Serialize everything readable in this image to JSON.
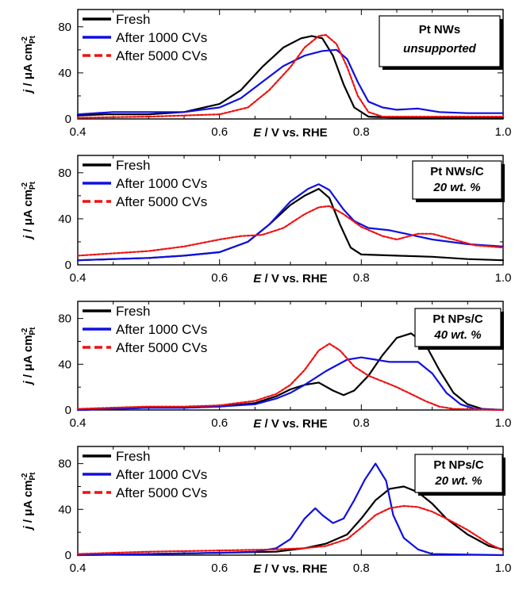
{
  "figure": {
    "ylabel_main": "j / μA cm",
    "ylabel_sup": "-2",
    "ylabel_sub": "Pt",
    "xlabel_main": "E",
    "xlabel_rest": " / V vs. RHE"
  },
  "colors": {
    "Fresh": "#000000",
    "After 1000 CVs": "#1010e0",
    "After 5000 CVs": "#ee1111"
  },
  "chart_data": [
    {
      "type": "line",
      "label_line1": "Pt NWs",
      "label_line2": "unsupported",
      "xlim": [
        0.4,
        1.0
      ],
      "ylim": [
        0,
        95
      ],
      "xticks": [
        "0.4",
        "0.6",
        "0.8",
        "1.0"
      ],
      "yticks": [
        "0",
        "40",
        "80"
      ],
      "series": [
        {
          "name": "Fresh",
          "style": "solid",
          "color": "#000000",
          "points": [
            [
              0.4,
              3
            ],
            [
              0.44,
              4
            ],
            [
              0.5,
              4
            ],
            [
              0.55,
              6
            ],
            [
              0.6,
              13
            ],
            [
              0.63,
              25
            ],
            [
              0.66,
              45
            ],
            [
              0.69,
              62
            ],
            [
              0.715,
              70
            ],
            [
              0.73,
              72
            ],
            [
              0.745,
              70
            ],
            [
              0.76,
              55
            ],
            [
              0.775,
              30
            ],
            [
              0.79,
              10
            ],
            [
              0.81,
              2
            ],
            [
              0.85,
              1
            ],
            [
              0.9,
              1
            ],
            [
              1.0,
              1
            ]
          ]
        },
        {
          "name": "After 1000 CVs",
          "style": "solid",
          "color": "#1010e0",
          "points": [
            [
              0.4,
              4
            ],
            [
              0.45,
              6
            ],
            [
              0.5,
              6
            ],
            [
              0.55,
              6
            ],
            [
              0.6,
              10
            ],
            [
              0.63,
              18
            ],
            [
              0.66,
              32
            ],
            [
              0.69,
              46
            ],
            [
              0.72,
              55
            ],
            [
              0.745,
              59
            ],
            [
              0.765,
              60
            ],
            [
              0.78,
              52
            ],
            [
              0.795,
              32
            ],
            [
              0.81,
              15
            ],
            [
              0.83,
              10
            ],
            [
              0.85,
              8
            ],
            [
              0.88,
              9
            ],
            [
              0.91,
              6
            ],
            [
              0.95,
              5
            ],
            [
              1.0,
              5
            ]
          ]
        },
        {
          "name": "After 5000 CVs",
          "style": "dashed",
          "color": "#ee1111",
          "points": [
            [
              0.4,
              1
            ],
            [
              0.5,
              2
            ],
            [
              0.6,
              4
            ],
            [
              0.64,
              10
            ],
            [
              0.67,
              25
            ],
            [
              0.7,
              45
            ],
            [
              0.72,
              62
            ],
            [
              0.74,
              72
            ],
            [
              0.75,
              73
            ],
            [
              0.765,
              65
            ],
            [
              0.78,
              45
            ],
            [
              0.795,
              20
            ],
            [
              0.81,
              6
            ],
            [
              0.83,
              2
            ],
            [
              0.9,
              2
            ],
            [
              1.0,
              2
            ]
          ]
        }
      ]
    },
    {
      "type": "line",
      "label_line1": "Pt NWs/C",
      "label_line2": "20 wt. %",
      "xlim": [
        0.4,
        1.0
      ],
      "ylim": [
        0,
        95
      ],
      "xticks": [
        "0.4",
        "0.6",
        "0.8",
        "1.0"
      ],
      "yticks": [
        "0",
        "40",
        "80"
      ],
      "series": [
        {
          "name": "Fresh",
          "style": "solid",
          "color": "#000000",
          "points": [
            [
              0.4,
              4
            ],
            [
              0.45,
              5
            ],
            [
              0.5,
              6
            ],
            [
              0.55,
              8
            ],
            [
              0.6,
              11
            ],
            [
              0.64,
              20
            ],
            [
              0.67,
              35
            ],
            [
              0.7,
              52
            ],
            [
              0.72,
              60
            ],
            [
              0.74,
              66
            ],
            [
              0.755,
              58
            ],
            [
              0.77,
              35
            ],
            [
              0.785,
              15
            ],
            [
              0.8,
              9
            ],
            [
              0.85,
              8
            ],
            [
              0.9,
              7
            ],
            [
              0.95,
              5
            ],
            [
              1.0,
              4
            ]
          ]
        },
        {
          "name": "After 1000 CVs",
          "style": "solid",
          "color": "#1010e0",
          "points": [
            [
              0.4,
              4
            ],
            [
              0.45,
              5
            ],
            [
              0.5,
              6
            ],
            [
              0.55,
              8
            ],
            [
              0.6,
              11
            ],
            [
              0.64,
              20
            ],
            [
              0.67,
              35
            ],
            [
              0.7,
              55
            ],
            [
              0.725,
              66
            ],
            [
              0.74,
              70
            ],
            [
              0.755,
              65
            ],
            [
              0.775,
              48
            ],
            [
              0.79,
              38
            ],
            [
              0.81,
              32
            ],
            [
              0.84,
              30
            ],
            [
              0.87,
              26
            ],
            [
              0.9,
              22
            ],
            [
              0.95,
              18
            ],
            [
              1.0,
              16
            ]
          ]
        },
        {
          "name": "After 5000 CVs",
          "style": "dashed",
          "color": "#ee1111",
          "points": [
            [
              0.4,
              8
            ],
            [
              0.45,
              10
            ],
            [
              0.5,
              12
            ],
            [
              0.55,
              16
            ],
            [
              0.6,
              22
            ],
            [
              0.63,
              25
            ],
            [
              0.66,
              26
            ],
            [
              0.69,
              32
            ],
            [
              0.72,
              44
            ],
            [
              0.74,
              50
            ],
            [
              0.755,
              51
            ],
            [
              0.775,
              44
            ],
            [
              0.8,
              33
            ],
            [
              0.83,
              25
            ],
            [
              0.85,
              22
            ],
            [
              0.88,
              27
            ],
            [
              0.9,
              27
            ],
            [
              0.93,
              22
            ],
            [
              0.96,
              17
            ],
            [
              1.0,
              15
            ]
          ]
        }
      ]
    },
    {
      "type": "line",
      "label_line1": "Pt NPs/C",
      "label_line2": "40 wt. %",
      "xlim": [
        0.4,
        1.0
      ],
      "ylim": [
        0,
        95
      ],
      "xticks": [
        "0.4",
        "0.6",
        "0.8",
        "1.0"
      ],
      "yticks": [
        "0",
        "40",
        "80"
      ],
      "series": [
        {
          "name": "Fresh",
          "style": "solid",
          "color": "#000000",
          "points": [
            [
              0.4,
              0
            ],
            [
              0.45,
              1
            ],
            [
              0.5,
              2
            ],
            [
              0.55,
              2
            ],
            [
              0.6,
              3
            ],
            [
              0.65,
              6
            ],
            [
              0.68,
              12
            ],
            [
              0.7,
              18
            ],
            [
              0.72,
              22
            ],
            [
              0.74,
              24
            ],
            [
              0.76,
              17
            ],
            [
              0.775,
              13
            ],
            [
              0.79,
              17
            ],
            [
              0.81,
              30
            ],
            [
              0.83,
              48
            ],
            [
              0.85,
              63
            ],
            [
              0.87,
              67
            ],
            [
              0.89,
              58
            ],
            [
              0.91,
              35
            ],
            [
              0.93,
              15
            ],
            [
              0.95,
              5
            ],
            [
              0.97,
              1
            ],
            [
              1.0,
              0
            ]
          ]
        },
        {
          "name": "After 1000 CVs",
          "style": "solid",
          "color": "#1010e0",
          "points": [
            [
              0.4,
              0
            ],
            [
              0.45,
              1
            ],
            [
              0.5,
              2
            ],
            [
              0.55,
              2
            ],
            [
              0.6,
              3
            ],
            [
              0.65,
              5
            ],
            [
              0.68,
              10
            ],
            [
              0.7,
              15
            ],
            [
              0.72,
              22
            ],
            [
              0.75,
              34
            ],
            [
              0.78,
              44
            ],
            [
              0.8,
              46
            ],
            [
              0.82,
              44
            ],
            [
              0.84,
              42
            ],
            [
              0.86,
              42
            ],
            [
              0.88,
              42
            ],
            [
              0.9,
              32
            ],
            [
              0.92,
              15
            ],
            [
              0.94,
              5
            ],
            [
              0.96,
              1
            ],
            [
              1.0,
              0
            ]
          ]
        },
        {
          "name": "After 5000 CVs",
          "style": "dashed",
          "color": "#ee1111",
          "points": [
            [
              0.4,
              1
            ],
            [
              0.45,
              2
            ],
            [
              0.5,
              3
            ],
            [
              0.55,
              3
            ],
            [
              0.6,
              4
            ],
            [
              0.65,
              8
            ],
            [
              0.68,
              14
            ],
            [
              0.7,
              22
            ],
            [
              0.72,
              35
            ],
            [
              0.74,
              52
            ],
            [
              0.755,
              58
            ],
            [
              0.77,
              52
            ],
            [
              0.79,
              38
            ],
            [
              0.81,
              30
            ],
            [
              0.83,
              25
            ],
            [
              0.85,
              20
            ],
            [
              0.87,
              14
            ],
            [
              0.89,
              8
            ],
            [
              0.91,
              3
            ],
            [
              0.93,
              1
            ],
            [
              1.0,
              0
            ]
          ]
        }
      ]
    },
    {
      "type": "line",
      "label_line1": "Pt NPs/C",
      "label_line2": "20 wt. %",
      "xlim": [
        0.4,
        1.0
      ],
      "ylim": [
        0,
        95
      ],
      "xticks": [
        "0.4",
        "0.6",
        "0.8",
        "1.0"
      ],
      "yticks": [
        "0",
        "40",
        "80"
      ],
      "series": [
        {
          "name": "Fresh",
          "style": "solid",
          "color": "#000000",
          "points": [
            [
              0.4,
              0
            ],
            [
              0.5,
              1
            ],
            [
              0.6,
              2
            ],
            [
              0.68,
              3
            ],
            [
              0.72,
              6
            ],
            [
              0.75,
              10
            ],
            [
              0.78,
              18
            ],
            [
              0.8,
              32
            ],
            [
              0.82,
              48
            ],
            [
              0.84,
              58
            ],
            [
              0.86,
              60
            ],
            [
              0.88,
              55
            ],
            [
              0.9,
              45
            ],
            [
              0.92,
              32
            ],
            [
              0.95,
              18
            ],
            [
              0.98,
              8
            ],
            [
              1.0,
              5
            ]
          ]
        },
        {
          "name": "After 1000 CVs",
          "style": "solid",
          "color": "#1010e0",
          "points": [
            [
              0.4,
              0
            ],
            [
              0.5,
              1
            ],
            [
              0.6,
              2
            ],
            [
              0.65,
              3
            ],
            [
              0.68,
              6
            ],
            [
              0.7,
              14
            ],
            [
              0.72,
              32
            ],
            [
              0.735,
              41
            ],
            [
              0.745,
              35
            ],
            [
              0.76,
              28
            ],
            [
              0.775,
              32
            ],
            [
              0.79,
              48
            ],
            [
              0.805,
              66
            ],
            [
              0.82,
              80
            ],
            [
              0.835,
              65
            ],
            [
              0.845,
              35
            ],
            [
              0.86,
              15
            ],
            [
              0.88,
              5
            ],
            [
              0.9,
              1
            ],
            [
              1.0,
              0
            ]
          ]
        },
        {
          "name": "After 5000 CVs",
          "style": "dashed",
          "color": "#ee1111",
          "points": [
            [
              0.4,
              1
            ],
            [
              0.5,
              3
            ],
            [
              0.6,
              4
            ],
            [
              0.68,
              5
            ],
            [
              0.72,
              6
            ],
            [
              0.75,
              8
            ],
            [
              0.78,
              14
            ],
            [
              0.8,
              24
            ],
            [
              0.82,
              35
            ],
            [
              0.84,
              41
            ],
            [
              0.86,
              43
            ],
            [
              0.88,
              42
            ],
            [
              0.9,
              38
            ],
            [
              0.92,
              32
            ],
            [
              0.95,
              22
            ],
            [
              0.98,
              10
            ],
            [
              1.0,
              4
            ]
          ]
        }
      ]
    }
  ]
}
